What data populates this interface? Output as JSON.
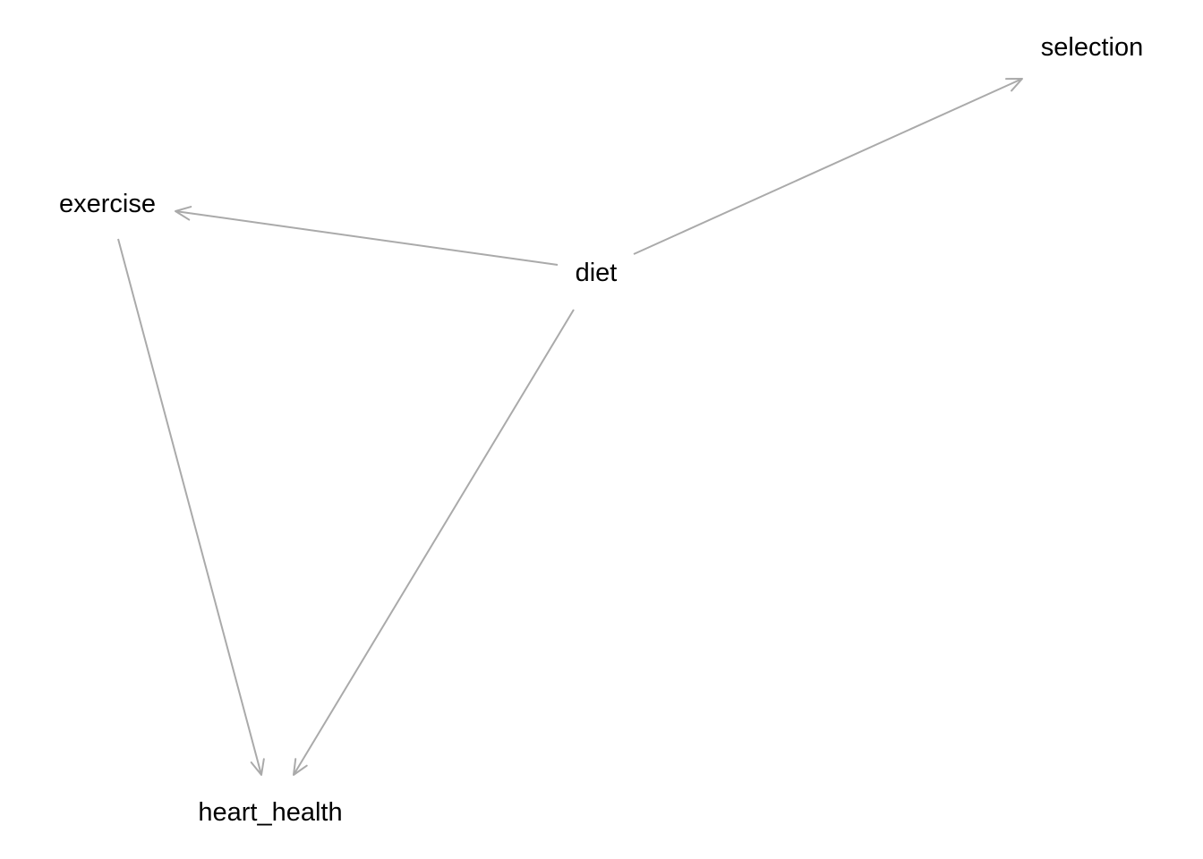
{
  "diagram": {
    "type": "directed-acyclic-graph",
    "edge_color": "#aaaaaa",
    "nodes": [
      {
        "id": "exercise",
        "label": "exercise"
      },
      {
        "id": "diet",
        "label": "diet"
      },
      {
        "id": "selection",
        "label": "selection"
      },
      {
        "id": "heart_health",
        "label": "heart_health"
      }
    ],
    "edges": [
      {
        "from": "diet",
        "to": "exercise"
      },
      {
        "from": "diet",
        "to": "selection"
      },
      {
        "from": "diet",
        "to": "heart_health"
      },
      {
        "from": "exercise",
        "to": "heart_health"
      }
    ]
  }
}
